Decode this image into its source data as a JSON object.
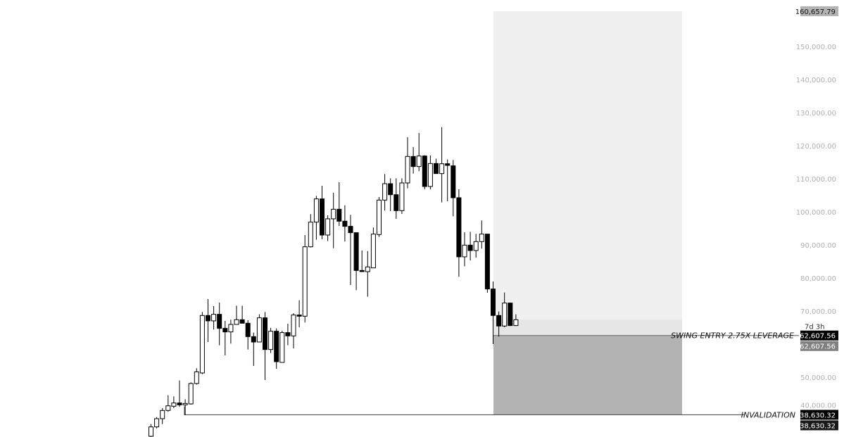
{
  "chart_data": {
    "type": "candlestick",
    "y_axis": {
      "ticks": [
        150000,
        140000,
        130000,
        120000,
        110000,
        100000,
        90000,
        80000,
        70000,
        50000,
        40000
      ],
      "tick_labels": [
        "150,000.00",
        "140,000.00",
        "130,000.00",
        "120,000.00",
        "110,000.00",
        "100,000.00",
        "90,000.00",
        "80,000.00",
        "70,000.00",
        "50,000.00",
        "40,000.00"
      ],
      "ylim": [
        33000,
        160657.79
      ],
      "position": "right"
    },
    "colors": {
      "up_body": "#ffffff",
      "down_body": "#000000",
      "wick": "#000000",
      "target_zone": "#f0f0f0",
      "open_zone": "#e6e6e6",
      "stop_zone": "#b3b3b3",
      "top_tag": "#b3b3b3"
    },
    "candles": [
      [
        32130,
        35820,
        31000,
        34970
      ],
      [
        34970,
        37950,
        34540,
        37450
      ],
      [
        37450,
        40640,
        35820,
        39930
      ],
      [
        39930,
        44540,
        39580,
        41350
      ],
      [
        41210,
        44190,
        40640,
        42200
      ],
      [
        42200,
        49010,
        41000,
        41630
      ],
      [
        41630,
        43330,
        38510,
        42060
      ],
      [
        41920,
        48440,
        41710,
        48090
      ],
      [
        48090,
        52700,
        47730,
        51630
      ],
      [
        51280,
        69720,
        50920,
        68660
      ],
      [
        68660,
        73620,
        60640,
        67030
      ],
      [
        67030,
        71490,
        64400,
        69010
      ],
      [
        69010,
        72560,
        59650,
        64760
      ],
      [
        64760,
        67030,
        56600,
        63690
      ],
      [
        63690,
        67380,
        60150,
        65960
      ],
      [
        65960,
        71630,
        65960,
        67380
      ],
      [
        67380,
        71630,
        66320,
        66320
      ],
      [
        66320,
        67240,
        58370,
        62270
      ],
      [
        62270,
        63480,
        53410,
        60640
      ],
      [
        60640,
        69010,
        60640,
        67950
      ],
      [
        67950,
        69720,
        49150,
        58370
      ],
      [
        58370,
        64900,
        57310,
        63900
      ],
      [
        63900,
        64760,
        52560,
        54680
      ],
      [
        54470,
        64040,
        54470,
        63480
      ],
      [
        63480,
        66170,
        59650,
        62480
      ],
      [
        62480,
        69360,
        58720,
        68800
      ],
      [
        68800,
        73260,
        65110,
        68440
      ],
      [
        68440,
        92980,
        66530,
        89430
      ],
      [
        89430,
        99290,
        89220,
        96880
      ],
      [
        96880,
        104820,
        91560,
        103900
      ],
      [
        103900,
        107870,
        91710,
        92980
      ],
      [
        92980,
        98940,
        91140,
        97880
      ],
      [
        97880,
        105750,
        89010,
        100780
      ],
      [
        100780,
        108940,
        95750,
        97170
      ],
      [
        97170,
        101990,
        91000,
        95610
      ],
      [
        95610,
        99080,
        77870,
        93690
      ],
      [
        93690,
        93690,
        76310,
        82270
      ],
      [
        82270,
        88300,
        81920,
        81920
      ],
      [
        81920,
        88160,
        74330,
        83340
      ],
      [
        83050,
        95260,
        83050,
        93270
      ],
      [
        93130,
        104470,
        92410,
        103550
      ],
      [
        103550,
        111420,
        100360,
        108510
      ],
      [
        108510,
        110140,
        100220,
        105180
      ],
      [
        105180,
        110140,
        97880,
        100360
      ],
      [
        100360,
        110140,
        99360,
        108730
      ],
      [
        108730,
        122560,
        107090,
        116740
      ],
      [
        116740,
        119580,
        111560,
        113690
      ],
      [
        113690,
        123830,
        112270,
        116880
      ],
      [
        116880,
        117100,
        106810,
        107660
      ],
      [
        107660,
        117020,
        106810,
        114610
      ],
      [
        114610,
        116030,
        111560,
        111560
      ],
      [
        111560,
        125610,
        102840,
        114540
      ],
      [
        114540,
        115820,
        103190,
        114040
      ],
      [
        113900,
        115680,
        98650,
        104260
      ],
      [
        104260,
        106810,
        80360,
        86390
      ],
      [
        86390,
        93830,
        83550,
        89930
      ],
      [
        89930,
        93970,
        85320,
        88300
      ],
      [
        88300,
        93340,
        86170,
        91000
      ],
      [
        91000,
        97380,
        88870,
        93270
      ],
      [
        93270,
        93270,
        75530,
        76670
      ],
      [
        76670,
        78940,
        60000,
        68660
      ],
      [
        68660,
        69860,
        62270,
        65470
      ],
      [
        65470,
        75600,
        65110,
        72420
      ],
      [
        72420,
        72420,
        65470,
        65610
      ],
      [
        65610,
        69010,
        65470,
        67380
      ]
    ],
    "candle_format": [
      "open",
      "high",
      "low",
      "close"
    ],
    "position_tool": {
      "entry": 62607.56,
      "target": 160657.79,
      "stop": 38630.32,
      "entry_label": "62,607.56",
      "target_label": "160,657.79",
      "stop_label": "38,630.32",
      "countdown": "7d 3h"
    },
    "horizontal_lines": [
      {
        "name": "SWING ENTRY 2.75X LEVERAGE",
        "price": 62607.56,
        "tag": "62,607.56",
        "tag2": "62,607.56"
      },
      {
        "name": "INVALIDATION",
        "price": 38630.32,
        "tag": "38,630.32",
        "tag2": "38,630.32"
      }
    ]
  }
}
